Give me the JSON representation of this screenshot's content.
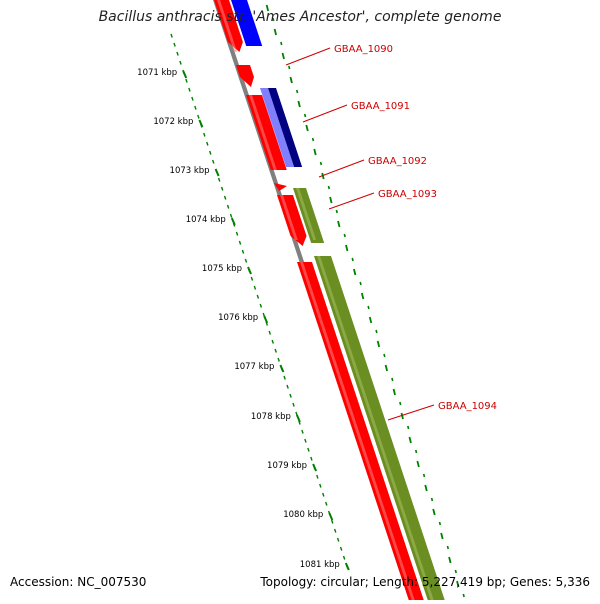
{
  "title": "Bacillus anthracis str. 'Ames Ancestor', complete genome",
  "footer": {
    "accession": "Accession: NC_007530",
    "summary": "Topology: circular; Length: 5,227,419 bp; Genes: 5,336"
  },
  "colors": {
    "forward_cds": "#ff0000",
    "reverse_blue": "#0000ff",
    "reverse_navy": "#000080",
    "reverse_lavender": "#8080ff",
    "reverse_olive": "#6b8e23",
    "ruler": "#008000",
    "backbone": "#808080",
    "gene_label": "#cc0000"
  },
  "ruler": {
    "unit": "kbp",
    "major_ticks": [
      "1071 kbp",
      "1072 kbp",
      "1073 kbp",
      "1074 kbp",
      "1075 kbp",
      "1076 kbp",
      "1077 kbp",
      "1078 kbp",
      "1079 kbp",
      "1080 kbp",
      "1081 kbp"
    ]
  },
  "genes": [
    {
      "name": "GBAA_1090"
    },
    {
      "name": "GBAA_1091"
    },
    {
      "name": "GBAA_1092"
    },
    {
      "name": "GBAA_1093"
    },
    {
      "name": "GBAA_1094"
    }
  ]
}
